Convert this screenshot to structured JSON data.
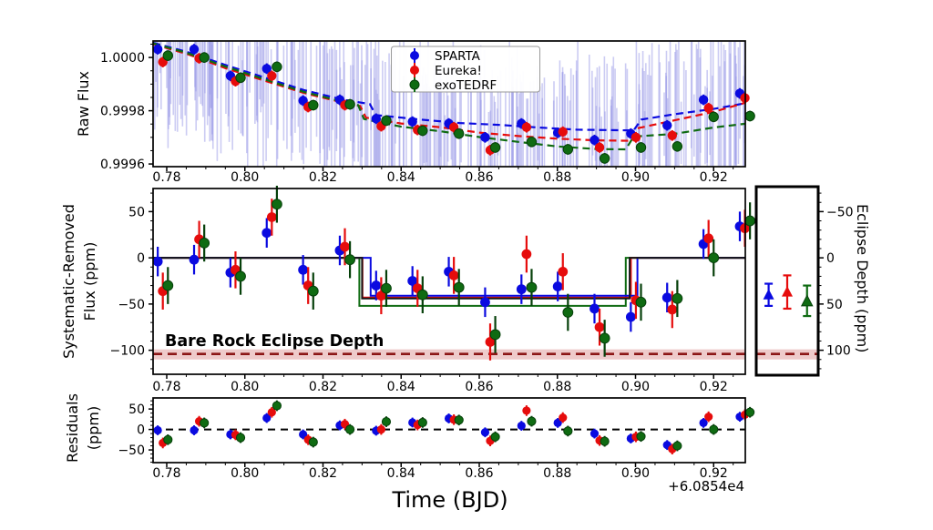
{
  "figure": {
    "xlabel": "Time (BJD)",
    "axis_offset_label": "+6.0854e4",
    "x_tick_labels": [
      "0.78",
      "0.80",
      "0.82",
      "0.84",
      "0.86",
      "0.88",
      "0.90",
      "0.92"
    ],
    "x_tick_values": [
      0.78,
      0.8,
      0.82,
      0.84,
      0.86,
      0.88,
      0.9,
      0.92
    ],
    "xlim": [
      0.7765,
      0.9281
    ],
    "legend": {
      "entries": [
        {
          "label": "SPARTA",
          "color": "#0a0ae0"
        },
        {
          "label": "Eureka!",
          "color": "#e60c0c"
        },
        {
          "label": "exoTEDRF",
          "color": "#0f6b12"
        }
      ]
    },
    "colors": {
      "sparta": "#0a0ae0",
      "eureka": "#e60c0c",
      "exotedrf": "#0f6b12",
      "exotedrf_edge": "#06400a",
      "noise": "#9a9ae8",
      "model_black": "#151515",
      "bare_rock": "#8c1515",
      "bare_rock_band": "#e0a0a0"
    }
  },
  "chart_data": [
    {
      "id": "raw_flux",
      "type": "scatter",
      "ylabel": "Raw Flux",
      "ylim": [
        0.99959,
        1.000062
      ],
      "y_ticks": [
        {
          "v": 1.0,
          "label": "1.0000"
        },
        {
          "v": 0.9998,
          "label": "0.9998"
        },
        {
          "v": 0.9996,
          "label": "0.9996"
        }
      ],
      "x_bins": [
        0.779,
        0.7883,
        0.7976,
        0.8069,
        0.8162,
        0.8256,
        0.8349,
        0.8442,
        0.8535,
        0.8628,
        0.8721,
        0.8814,
        0.8908,
        0.9001,
        0.9094,
        0.9187,
        0.928
      ],
      "series": [
        {
          "name": "SPARTA",
          "err_flux": 2e-05,
          "values": [
            1.000031,
            1.000031,
            0.999931,
            0.999958,
            0.999838,
            0.999841,
            0.99977,
            0.999759,
            0.999752,
            0.9997,
            0.999752,
            0.999717,
            0.99969,
            0.999714,
            0.999745,
            0.999841,
            0.999865
          ]
        },
        {
          "name": "Eureka!",
          "err_flux": 2e-05,
          "values": [
            0.999983,
            0.999997,
            0.999911,
            0.999931,
            0.999814,
            0.999821,
            0.999742,
            0.999728,
            0.999738,
            0.999652,
            0.999738,
            0.999721,
            0.999662,
            0.9997,
            0.999707,
            0.99981,
            0.999848
          ]
        },
        {
          "name": "exoTEDRF",
          "err_flux": 2e-05,
          "values": [
            1.000007,
            1.0,
            0.999924,
            0.999965,
            0.999821,
            0.999824,
            0.999763,
            0.999725,
            0.999714,
            0.999662,
            0.999683,
            0.999655,
            0.999621,
            0.999662,
            0.999666,
            0.999777,
            0.99978
          ]
        }
      ],
      "models_ppm_offset": [
        {
          "name": "SPARTA",
          "points": [
            [
              0.7765,
              55
            ],
            [
              0.785,
              22
            ],
            [
              0.795,
              -28
            ],
            [
              0.805,
              -75
            ],
            [
              0.815,
              -122
            ],
            [
              0.825,
              -158
            ],
            [
              0.832,
              -175
            ],
            [
              0.8335,
              -216
            ],
            [
              0.845,
              -233
            ],
            [
              0.855,
              -246
            ],
            [
              0.865,
              -253
            ],
            [
              0.875,
              -263
            ],
            [
              0.885,
              -271
            ],
            [
              0.8995,
              -274
            ],
            [
              0.9015,
              -233
            ],
            [
              0.91,
              -213
            ],
            [
              0.92,
              -193
            ],
            [
              0.9281,
              -172
            ]
          ]
        },
        {
          "name": "Eureka!",
          "points": [
            [
              0.7765,
              50
            ],
            [
              0.785,
              14
            ],
            [
              0.795,
              -40
            ],
            [
              0.805,
              -87
            ],
            [
              0.815,
              -133
            ],
            [
              0.825,
              -169
            ],
            [
              0.8295,
              -182
            ],
            [
              0.831,
              -226
            ],
            [
              0.84,
              -248
            ],
            [
              0.85,
              -262
            ],
            [
              0.86,
              -282
            ],
            [
              0.87,
              -295
            ],
            [
              0.88,
              -305
            ],
            [
              0.89,
              -311
            ],
            [
              0.8985,
              -313
            ],
            [
              0.9005,
              -266
            ],
            [
              0.91,
              -236
            ],
            [
              0.92,
              -204
            ],
            [
              0.9281,
              -170
            ]
          ]
        },
        {
          "name": "exoTEDRF",
          "points": [
            [
              0.7765,
              53
            ],
            [
              0.785,
              18
            ],
            [
              0.795,
              -34
            ],
            [
              0.805,
              -82
            ],
            [
              0.815,
              -129
            ],
            [
              0.825,
              -166
            ],
            [
              0.829,
              -179
            ],
            [
              0.8305,
              -231
            ],
            [
              0.84,
              -260
            ],
            [
              0.85,
              -277
            ],
            [
              0.86,
              -299
            ],
            [
              0.87,
              -317
            ],
            [
              0.88,
              -334
            ],
            [
              0.89,
              -344
            ],
            [
              0.8975,
              -345
            ],
            [
              0.8995,
              -297
            ],
            [
              0.91,
              -287
            ],
            [
              0.92,
              -263
            ],
            [
              0.9281,
              -249
            ]
          ]
        }
      ],
      "unbinned_noise": {
        "n": 330,
        "seed": 7,
        "opacity": 0.5,
        "stroke_width": 1.6
      }
    },
    {
      "id": "systematic_removed",
      "type": "scatter",
      "ylabel_lines": [
        "Systematic-Removed",
        "Flux (ppm)"
      ],
      "ylim": [
        -126,
        75
      ],
      "y_ticks": [
        {
          "v": 50,
          "label": "50"
        },
        {
          "v": 0,
          "label": "0"
        },
        {
          "v": -50,
          "label": "−50"
        },
        {
          "v": -100,
          "label": "−100"
        }
      ],
      "series": [
        {
          "name": "SPARTA",
          "err_ppm": 16,
          "values": [
            -4,
            -2,
            -16,
            27,
            -13,
            8,
            -30,
            -25,
            -15,
            -48,
            -34,
            -31,
            -55,
            -64,
            -43,
            15,
            34
          ]
        },
        {
          "name": "Eureka!",
          "err_ppm": 20,
          "values": [
            -36,
            20,
            -13,
            44,
            -30,
            12,
            -41,
            -33,
            -19,
            -91,
            4,
            -15,
            -75,
            -46,
            -56,
            21,
            32
          ]
        },
        {
          "name": "exoTEDRF",
          "err_ppm": 20,
          "values": [
            -30,
            16,
            -20,
            58,
            -36,
            -2,
            -33,
            -40,
            -32,
            -83,
            -32,
            -59,
            -87,
            -48,
            -44,
            0,
            40
          ]
        }
      ],
      "eclipse_models": [
        {
          "name": "exoTEDRF",
          "depth_ppm": 52,
          "t_start": 0.8293,
          "t_end": 0.8975
        },
        {
          "name": "Eureka!",
          "depth_ppm": 43,
          "t_start": 0.8301,
          "t_end": 0.8988
        },
        {
          "name": "SPARTA",
          "depth_ppm": 41,
          "t_start": 0.8322,
          "t_end": 0.9005
        },
        {
          "name": "combined",
          "depth_ppm": 44,
          "t_start": 0.83,
          "t_end": 0.8985
        }
      ],
      "bare_rock": {
        "label": "Bare Rock Eclipse Depth",
        "level_ppm": -104,
        "band_ppm": [
          -99,
          -110
        ]
      }
    },
    {
      "id": "eclipse_depth",
      "type": "scatter",
      "ylabel": "Eclipse Depth (ppm)",
      "ylim": [
        -76,
        127
      ],
      "y_ticks": [
        {
          "v": -50,
          "label": "−50"
        },
        {
          "v": 0,
          "label": "0"
        },
        {
          "v": 50,
          "label": "50"
        },
        {
          "v": 100,
          "label": "100"
        }
      ],
      "points": [
        {
          "name": "SPARTA",
          "depth_ppm": 40,
          "err_lo": 12,
          "err_hi": 12,
          "xfrac": 0.2
        },
        {
          "name": "Eureka!",
          "depth_ppm": 37,
          "err_lo": 18,
          "err_hi": 18,
          "xfrac": 0.5
        },
        {
          "name": "exoTEDRF",
          "depth_ppm": 47,
          "err_lo": 17,
          "err_hi": 16,
          "xfrac": 0.82
        }
      ],
      "bare_rock_level_ppm": 104,
      "bare_rock_band_ppm": [
        99,
        110
      ]
    },
    {
      "id": "residuals",
      "type": "scatter",
      "ylabel_lines": [
        "Residuals",
        "(ppm)"
      ],
      "ylim": [
        -81,
        77
      ],
      "y_ticks": [
        {
          "v": 50,
          "label": "50"
        },
        {
          "v": 0,
          "label": "0"
        },
        {
          "v": -50,
          "label": "−50"
        }
      ],
      "zero_line": "dashed",
      "series": [
        {
          "name": "SPARTA",
          "err_ppm": 12,
          "values": [
            -2,
            -2,
            -12,
            28,
            -12,
            10,
            -3,
            17,
            27,
            -7,
            9,
            16,
            -10,
            -22,
            -38,
            16,
            31
          ]
        },
        {
          "name": "Eureka!",
          "err_ppm": 13,
          "values": [
            -33,
            20,
            -13,
            42,
            -25,
            13,
            0,
            11,
            24,
            -28,
            46,
            29,
            -27,
            -18,
            -48,
            31,
            36
          ]
        },
        {
          "name": "exoTEDRF",
          "err_ppm": 13,
          "values": [
            -25,
            16,
            -20,
            58,
            -31,
            0,
            19,
            17,
            23,
            -18,
            20,
            -4,
            -29,
            -17,
            -40,
            0,
            42
          ]
        }
      ]
    }
  ]
}
